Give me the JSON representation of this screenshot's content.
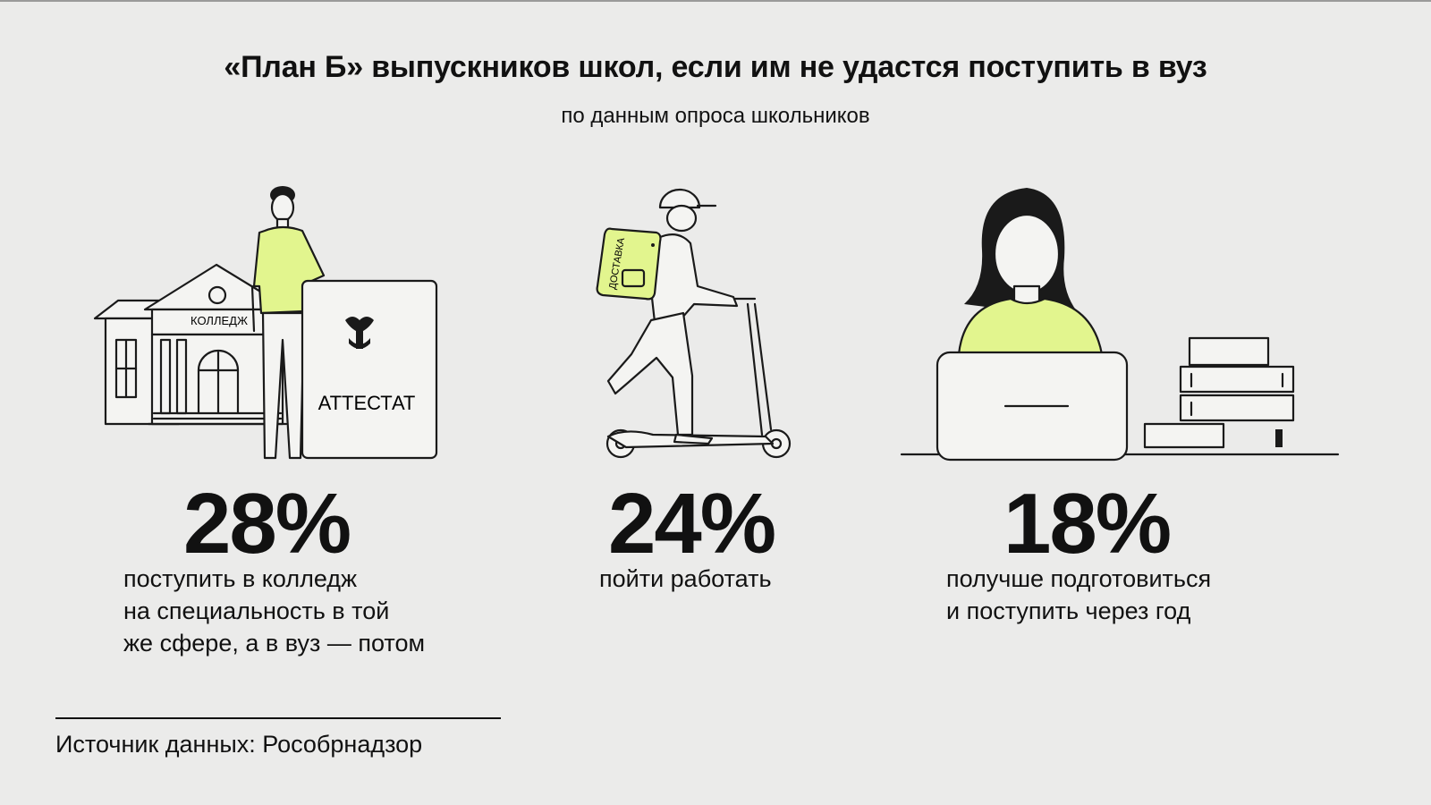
{
  "title": "«План Б» выпускников школ, если им не удастся поступить в вуз",
  "subtitle": "по данным опроса школьников",
  "colors": {
    "accent": "#e2f58e",
    "background": "#ebebea",
    "ink": "#111111"
  },
  "items": [
    {
      "percent": "28%",
      "description": "поступить в колледж\nна специальность в той\nже сфере, а в вуз — потом",
      "illustration_labels": {
        "college": "КОЛЛЕДЖ",
        "certificate": "АТТЕСТАТ"
      }
    },
    {
      "percent": "24%",
      "description": "пойти работать",
      "illustration_labels": {
        "backpack": "ДОСТАВКА"
      }
    },
    {
      "percent": "18%",
      "description": "получше подготовиться\nи поступить через год"
    }
  ],
  "source": "Источник данных: Рособрнадзор"
}
